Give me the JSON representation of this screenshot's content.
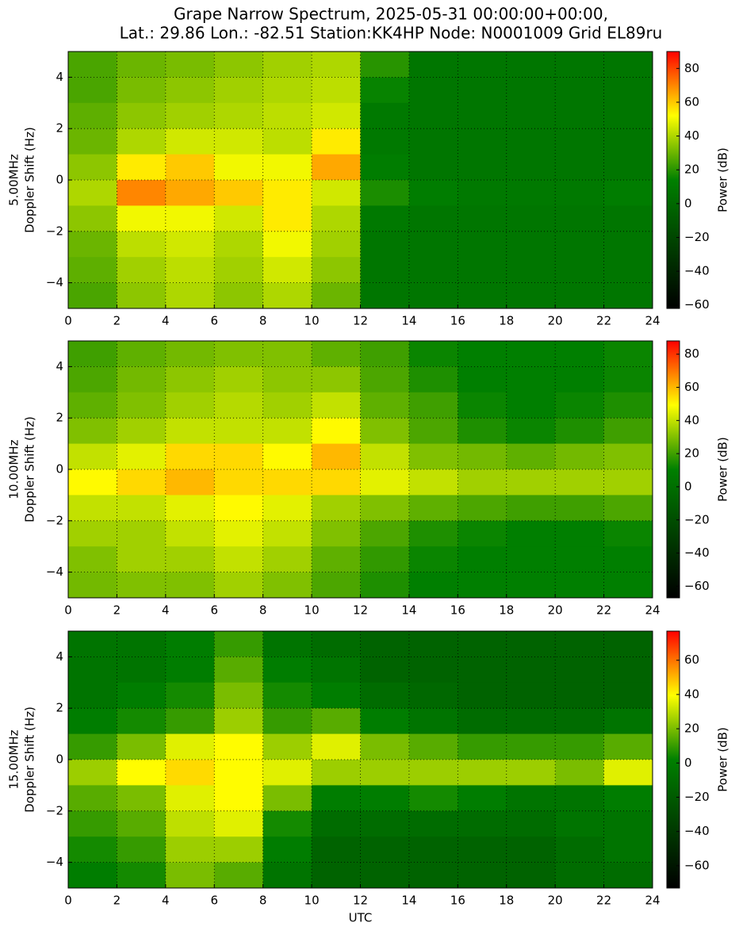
{
  "chart_data": [
    {
      "type": "heatmap",
      "title": [
        "Grape Narrow Spectrum, 2025-05-31 00:00:00+00:00,",
        "Lat.: 29.86 Lon.: -82.51 Station:KK4HP Node: N0001009 Grid EL89ru"
      ],
      "ylabel": [
        "5.00MHz",
        "Doppler Shift (Hz)"
      ],
      "colorbar_label": "Power (dB)",
      "colormap": [
        "#000000",
        "#004000",
        "#008000",
        "#ffff00",
        "#ff0000"
      ],
      "xlim": [
        0,
        24
      ],
      "xticks": [
        0,
        2,
        4,
        6,
        8,
        10,
        12,
        14,
        16,
        18,
        20,
        22,
        24
      ],
      "ylim": [
        -5,
        5
      ],
      "yticks": [
        {
          "value": -4,
          "label": "−4"
        },
        {
          "value": -2,
          "label": "−2"
        },
        0,
        2,
        4
      ],
      "clim": [
        -62,
        90
      ],
      "cticks": [
        {
          "value": -60,
          "label": "−60"
        },
        {
          "value": -40,
          "label": "−40"
        },
        {
          "value": -20,
          "label": "−20"
        },
        0,
        20,
        40,
        60,
        80
      ],
      "grid": true,
      "x": [
        1,
        3,
        5,
        7,
        9,
        11,
        13,
        15,
        17,
        19,
        21,
        23
      ],
      "y": [
        4.5,
        3.5,
        2.5,
        1.5,
        0.5,
        -0.5,
        -1.5,
        -2.5,
        -3.5,
        -4.5
      ],
      "z": [
        [
          25,
          30,
          32,
          35,
          38,
          40,
          20,
          8,
          8,
          8,
          8,
          8
        ],
        [
          25,
          32,
          35,
          38,
          40,
          42,
          15,
          8,
          8,
          8,
          8,
          8
        ],
        [
          28,
          35,
          38,
          40,
          42,
          45,
          10,
          8,
          8,
          8,
          8,
          8
        ],
        [
          30,
          40,
          45,
          45,
          42,
          55,
          10,
          8,
          8,
          8,
          8,
          8
        ],
        [
          35,
          55,
          60,
          50,
          50,
          65,
          12,
          8,
          8,
          8,
          8,
          8
        ],
        [
          40,
          70,
          65,
          60,
          55,
          45,
          18,
          12,
          10,
          10,
          10,
          12
        ],
        [
          35,
          50,
          50,
          45,
          55,
          40,
          10,
          8,
          8,
          8,
          8,
          8
        ],
        [
          30,
          42,
          45,
          40,
          50,
          38,
          8,
          8,
          8,
          8,
          8,
          8
        ],
        [
          28,
          38,
          42,
          38,
          45,
          35,
          8,
          8,
          8,
          8,
          8,
          8
        ],
        [
          25,
          35,
          40,
          35,
          40,
          30,
          8,
          8,
          8,
          8,
          8,
          8
        ]
      ]
    },
    {
      "type": "heatmap",
      "ylabel": [
        "10.00MHz",
        "Doppler Shift (Hz)"
      ],
      "colorbar_label": "Power (dB)",
      "colormap": [
        "#000000",
        "#004000",
        "#008000",
        "#ffff00",
        "#ff0000"
      ],
      "xlim": [
        0,
        24
      ],
      "xticks": [
        0,
        2,
        4,
        6,
        8,
        10,
        12,
        14,
        16,
        18,
        20,
        22,
        24
      ],
      "ylim": [
        -5,
        5
      ],
      "yticks": [
        {
          "value": -4,
          "label": "−4"
        },
        {
          "value": -2,
          "label": "−2"
        },
        0,
        2,
        4
      ],
      "clim": [
        -67,
        88
      ],
      "cticks": [
        {
          "value": -60,
          "label": "−60"
        },
        {
          "value": -40,
          "label": "−40"
        },
        {
          "value": -20,
          "label": "−20"
        },
        0,
        20,
        40,
        60,
        80
      ],
      "grid": true,
      "x": [
        1,
        3,
        5,
        7,
        9,
        11,
        13,
        15,
        17,
        19,
        21,
        23
      ],
      "y": [
        4.5,
        3.5,
        2.5,
        1.5,
        0.5,
        -0.5,
        -1.5,
        -2.5,
        -3.5,
        -4.5
      ],
      "z": [
        [
          20,
          25,
          28,
          30,
          30,
          25,
          20,
          12,
          10,
          10,
          10,
          12
        ],
        [
          22,
          28,
          32,
          35,
          32,
          32,
          22,
          15,
          10,
          10,
          10,
          12
        ],
        [
          25,
          30,
          35,
          38,
          35,
          40,
          25,
          20,
          12,
          10,
          12,
          15
        ],
        [
          30,
          35,
          40,
          40,
          40,
          50,
          30,
          22,
          15,
          12,
          15,
          20
        ],
        [
          40,
          45,
          55,
          55,
          50,
          60,
          40,
          30,
          28,
          25,
          28,
          30
        ],
        [
          50,
          55,
          60,
          55,
          55,
          55,
          45,
          40,
          35,
          35,
          35,
          35
        ],
        [
          40,
          40,
          45,
          50,
          45,
          35,
          30,
          25,
          22,
          20,
          20,
          22
        ],
        [
          35,
          35,
          40,
          45,
          40,
          30,
          22,
          15,
          12,
          10,
          10,
          12
        ],
        [
          30,
          35,
          35,
          40,
          35,
          25,
          18,
          12,
          10,
          10,
          10,
          10
        ],
        [
          28,
          30,
          30,
          35,
          30,
          22,
          15,
          10,
          10,
          10,
          10,
          10
        ]
      ]
    },
    {
      "type": "heatmap",
      "ylabel": [
        "15.00MHz",
        "Doppler Shift (Hz)"
      ],
      "colorbar_label": "Power (dB)",
      "xlabel": "UTC",
      "colormap": [
        "#000000",
        "#004000",
        "#008000",
        "#ffff00",
        "#ff0000"
      ],
      "xlim": [
        0,
        24
      ],
      "xticks": [
        0,
        2,
        4,
        6,
        8,
        10,
        12,
        14,
        16,
        18,
        20,
        22,
        24
      ],
      "ylim": [
        -5,
        5
      ],
      "yticks": [
        {
          "value": -4,
          "label": "−4"
        },
        {
          "value": -2,
          "label": "−2"
        },
        0,
        2,
        4
      ],
      "clim": [
        -73,
        77
      ],
      "cticks": [
        {
          "value": -60,
          "label": "−60"
        },
        {
          "value": -40,
          "label": "−40"
        },
        {
          "value": -20,
          "label": "−20"
        },
        0,
        20,
        40,
        60
      ],
      "grid": true,
      "x": [
        1,
        3,
        5,
        7,
        9,
        11,
        13,
        15,
        17,
        19,
        21,
        23
      ],
      "y": [
        4.5,
        3.5,
        2.5,
        1.5,
        0.5,
        -0.5,
        -1.5,
        -2.5,
        -3.5,
        -4.5
      ],
      "z": [
        [
          -5,
          -5,
          0,
          10,
          -5,
          -10,
          -15,
          -15,
          -15,
          -15,
          -15,
          -15
        ],
        [
          -5,
          -5,
          0,
          15,
          0,
          -5,
          -15,
          -15,
          -15,
          -15,
          -15,
          -15
        ],
        [
          -5,
          0,
          5,
          20,
          5,
          0,
          -10,
          -12,
          -15,
          -15,
          -15,
          -15
        ],
        [
          0,
          5,
          10,
          25,
          10,
          15,
          0,
          -5,
          -10,
          -10,
          -10,
          -5
        ],
        [
          10,
          20,
          35,
          40,
          25,
          35,
          20,
          15,
          10,
          10,
          10,
          15
        ],
        [
          25,
          40,
          45,
          40,
          35,
          25,
          25,
          25,
          25,
          25,
          20,
          35
        ],
        [
          15,
          20,
          35,
          40,
          20,
          0,
          0,
          5,
          0,
          -5,
          -5,
          0
        ],
        [
          10,
          15,
          30,
          35,
          5,
          -10,
          -10,
          -10,
          -10,
          -10,
          -5,
          -5
        ],
        [
          5,
          10,
          25,
          25,
          0,
          -15,
          -15,
          -15,
          -15,
          -15,
          -10,
          -5
        ],
        [
          0,
          5,
          20,
          15,
          -5,
          -15,
          -15,
          -15,
          -15,
          -15,
          -10,
          -10
        ]
      ]
    }
  ]
}
